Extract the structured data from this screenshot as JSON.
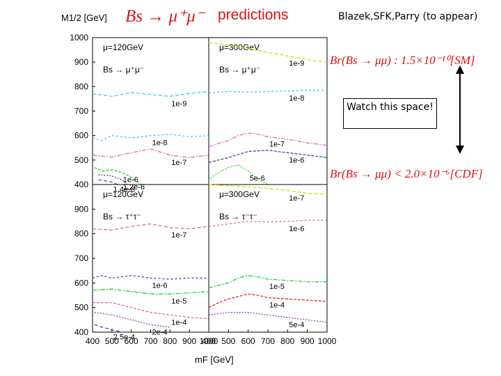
{
  "header": {
    "ylabel_title": "M1/2 [GeV]",
    "title_formula": "Bs → μ⁺μ⁻",
    "title_word": "predictions",
    "citation": "Blazek,SFK,Parry (to appear)",
    "sm_formula": "Br(Bs → μμ) : 1.5×10⁻¹⁰[SM]",
    "cdf_formula": "Br(Bs → μμ) < 2.0×10⁻⁶[CDF]",
    "callout": "Watch this space!"
  },
  "colors": {
    "yellow": "#d8d800",
    "cyan": "#33ccee",
    "green": "#22cc33",
    "pink": "#dd66aa",
    "blue": "#4444aa",
    "red": "#ee2222",
    "purple": "#8844aa",
    "arrow": "#000000"
  },
  "chart_data": {
    "type": "line",
    "xlabel": "mF [GeV]",
    "ylabel": "M1/2 [GeV]",
    "xlim": [
      400,
      1000
    ],
    "ylim": [
      400,
      1000
    ],
    "x_ticks": [
      400,
      500,
      600,
      700,
      800,
      900,
      1000
    ],
    "y_ticks": [
      400,
      500,
      600,
      700,
      800,
      900,
      1000
    ],
    "panels": [
      {
        "id": "top-left",
        "mu_label": "μ=120GeV",
        "process_label": "Bs → μ⁺μ⁻",
        "curves": [
          {
            "color": "cyan",
            "label": "1e-9",
            "points": [
              [
                400,
                770
              ],
              [
                500,
                760
              ],
              [
                600,
                775
              ],
              [
                700,
                768
              ],
              [
                800,
                760
              ],
              [
                900,
                772
              ],
              [
                1000,
                780
              ]
            ]
          },
          {
            "color": "cyan",
            "label": "1e-8",
            "points": [
              [
                400,
                590
              ],
              [
                450,
                580
              ],
              [
                500,
                600
              ],
              [
                600,
                590
              ],
              [
                700,
                600
              ],
              [
                800,
                605
              ],
              [
                900,
                595
              ],
              [
                1000,
                600
              ]
            ]
          },
          {
            "color": "pink",
            "label": "1e-7",
            "points": [
              [
                400,
                520
              ],
              [
                500,
                512
              ],
              [
                600,
                530
              ],
              [
                700,
                545
              ],
              [
                800,
                520
              ],
              [
                900,
                510
              ],
              [
                1000,
                520
              ]
            ]
          },
          {
            "color": "green",
            "label": "1e-6",
            "points": [
              [
                410,
                470
              ],
              [
                450,
                455
              ],
              [
                500,
                460
              ],
              [
                550,
                450
              ],
              [
                600,
                430
              ],
              [
                650,
                400
              ]
            ]
          },
          {
            "color": "blue",
            "label": "1.2e-6",
            "points": [
              [
                430,
                440
              ],
              [
                500,
                435
              ],
              [
                550,
                420
              ],
              [
                580,
                400
              ]
            ]
          },
          {
            "color": "purple",
            "label": "1.4e-6",
            "points": [
              [
                430,
                420
              ],
              [
                500,
                410
              ],
              [
                530,
                400
              ]
            ]
          }
        ]
      },
      {
        "id": "top-right",
        "mu_label": "μ=300GeV",
        "process_label": "Bs → μ⁺μ⁻",
        "curves": [
          {
            "color": "yellow",
            "label": "1e-9",
            "points": [
              [
                400,
                980
              ],
              [
                500,
                970
              ],
              [
                600,
                955
              ],
              [
                700,
                940
              ],
              [
                800,
                925
              ],
              [
                900,
                910
              ],
              [
                1000,
                900
              ]
            ]
          },
          {
            "color": "cyan",
            "label": "1e-8",
            "points": [
              [
                400,
                775
              ],
              [
                500,
                780
              ],
              [
                600,
                778
              ],
              [
                700,
                780
              ],
              [
                800,
                782
              ],
              [
                900,
                785
              ],
              [
                1000,
                785
              ]
            ]
          },
          {
            "color": "pink",
            "label": "1e-7",
            "points": [
              [
                400,
                555
              ],
              [
                500,
                580
              ],
              [
                550,
                600
              ],
              [
                600,
                610
              ],
              [
                650,
                605
              ],
              [
                700,
                595
              ],
              [
                800,
                585
              ],
              [
                900,
                570
              ],
              [
                1000,
                560
              ]
            ]
          },
          {
            "color": "blue",
            "label": "1e-6",
            "points": [
              [
                400,
                490
              ],
              [
                500,
                510
              ],
              [
                600,
                535
              ],
              [
                700,
                540
              ],
              [
                800,
                530
              ],
              [
                900,
                520
              ],
              [
                1000,
                510
              ]
            ]
          },
          {
            "color": "green",
            "label": "5e-6",
            "points": [
              [
                400,
                420
              ],
              [
                450,
                450
              ],
              [
                500,
                470
              ],
              [
                550,
                480
              ],
              [
                600,
                455
              ],
              [
                650,
                420
              ],
              [
                700,
                400
              ]
            ]
          }
        ]
      },
      {
        "id": "bottom-left",
        "mu_label": "μ=120GeV",
        "process_label": "Bs → τ⁺τ⁻",
        "curves": [
          {
            "color": "pink",
            "label": "1e-7",
            "points": [
              [
                400,
                820
              ],
              [
                500,
                815
              ],
              [
                600,
                830
              ],
              [
                700,
                840
              ],
              [
                800,
                825
              ],
              [
                900,
                820
              ],
              [
                1000,
                830
              ]
            ]
          },
          {
            "color": "blue",
            "label": "1e-6",
            "points": [
              [
                400,
                620
              ],
              [
                450,
                630
              ],
              [
                500,
                620
              ],
              [
                600,
                630
              ],
              [
                700,
                620
              ],
              [
                800,
                615
              ],
              [
                900,
                620
              ],
              [
                1000,
                620
              ]
            ]
          },
          {
            "color": "green",
            "label": "1e-5",
            "points": [
              [
                400,
                570
              ],
              [
                500,
                575
              ],
              [
                600,
                565
              ],
              [
                700,
                555
              ],
              [
                800,
                555
              ],
              [
                900,
                560
              ],
              [
                1000,
                565
              ]
            ]
          },
          {
            "color": "pink",
            "label": "1e-4",
            "points": [
              [
                400,
                520
              ],
              [
                500,
                520
              ],
              [
                600,
                500
              ],
              [
                700,
                480
              ],
              [
                800,
                470
              ],
              [
                900,
                460
              ],
              [
                1000,
                455
              ]
            ]
          },
          {
            "color": "purple",
            "label": "2e-4",
            "points": [
              [
                410,
                480
              ],
              [
                500,
                470
              ],
              [
                600,
                450
              ],
              [
                700,
                430
              ],
              [
                800,
                420
              ]
            ]
          },
          {
            "color": "blue",
            "label": "2.5e-4",
            "points": [
              [
                410,
                430
              ],
              [
                450,
                420
              ],
              [
                500,
                410
              ],
              [
                550,
                400
              ]
            ]
          }
        ]
      },
      {
        "id": "bottom-right",
        "mu_label": "μ=300GeV",
        "process_label": "Bs → τ⁻τ⁻",
        "curves": [
          {
            "color": "yellow",
            "label": "1e-7",
            "points": [
              [
                400,
                1000
              ],
              [
                500,
                995
              ],
              [
                600,
                990
              ],
              [
                700,
                985
              ],
              [
                800,
                975
              ],
              [
                900,
                965
              ],
              [
                1000,
                960
              ]
            ]
          },
          {
            "color": "pink",
            "label": "1e-6",
            "points": [
              [
                400,
                830
              ],
              [
                500,
                840
              ],
              [
                600,
                850
              ],
              [
                700,
                848
              ],
              [
                800,
                850
              ],
              [
                900,
                855
              ],
              [
                1000,
                855
              ]
            ]
          },
          {
            "color": "green",
            "label": "1e-5",
            "points": [
              [
                400,
                580
              ],
              [
                500,
                600
              ],
              [
                550,
                620
              ],
              [
                600,
                630
              ],
              [
                650,
                625
              ],
              [
                700,
                615
              ],
              [
                800,
                610
              ],
              [
                900,
                605
              ],
              [
                1000,
                605
              ]
            ]
          },
          {
            "color": "red",
            "label": "1e-4",
            "points": [
              [
                400,
                500
              ],
              [
                450,
                520
              ],
              [
                500,
                535
              ],
              [
                550,
                545
              ],
              [
                600,
                555
              ],
              [
                650,
                550
              ],
              [
                700,
                540
              ],
              [
                800,
                535
              ],
              [
                900,
                530
              ],
              [
                1000,
                525
              ]
            ]
          },
          {
            "color": "purple",
            "label": "5e-4",
            "points": [
              [
                400,
                470
              ],
              [
                500,
                480
              ],
              [
                600,
                480
              ],
              [
                700,
                470
              ],
              [
                800,
                460
              ],
              [
                900,
                450
              ],
              [
                1000,
                440
              ]
            ]
          }
        ]
      }
    ]
  }
}
